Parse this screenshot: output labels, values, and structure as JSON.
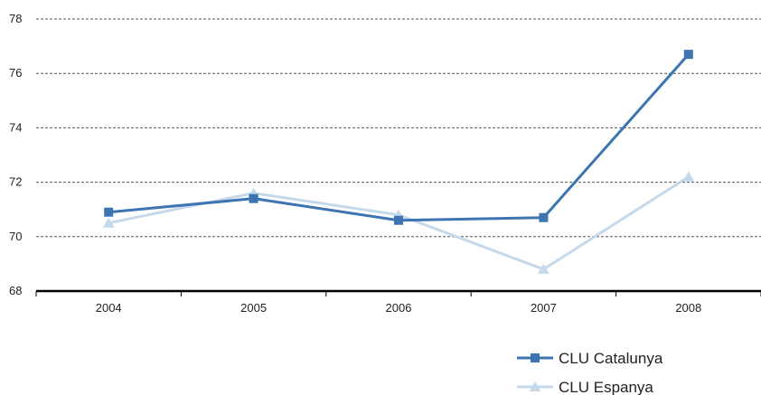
{
  "chart_data": {
    "type": "line",
    "categories": [
      "2004",
      "2005",
      "2006",
      "2007",
      "2008"
    ],
    "ylim": [
      68,
      78
    ],
    "yticks": [
      68,
      70,
      72,
      74,
      76,
      78
    ],
    "ytick_labels": [
      "68",
      "70",
      "72",
      "74",
      "76",
      "78"
    ],
    "grid": "horizontal dashed",
    "legend_position": "bottom-right",
    "series": [
      {
        "name": "CLU Catalunya",
        "values": [
          70.9,
          71.4,
          70.6,
          70.7,
          76.7
        ],
        "color": "#3d74b2",
        "marker": "square"
      },
      {
        "name": "CLU Espanya",
        "values": [
          70.5,
          71.6,
          70.8,
          68.8,
          72.2
        ],
        "color": "#c5d9eb",
        "marker": "triangle"
      }
    ]
  }
}
